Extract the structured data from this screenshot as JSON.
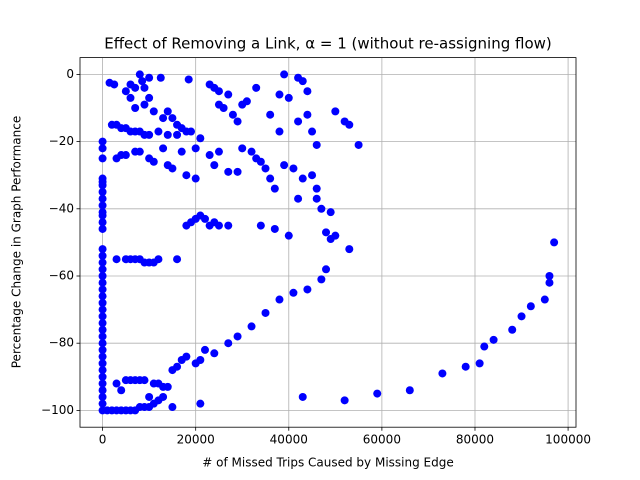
{
  "chart_data": {
    "type": "scatter",
    "title": "Effect of Removing a Link, α = 1 (without re-assigning flow)",
    "xlabel": "# of Missed Trips Caused by Missing Edge",
    "ylabel": "Percentage Change in Graph Performance",
    "color": "#0000ff",
    "grid": true,
    "xlim": [
      -4850,
      101700
    ],
    "ylim": [
      -105,
      5
    ],
    "xticks": [
      0,
      20000,
      40000,
      60000,
      80000,
      100000
    ],
    "yticks": [
      {
        "value": -100,
        "label": "−100"
      },
      {
        "value": -80,
        "label": "−80"
      },
      {
        "value": -60,
        "label": "−60"
      },
      {
        "value": -40,
        "label": "−40"
      },
      {
        "value": -20,
        "label": "−20"
      },
      0
    ],
    "x": [
      0,
      0,
      0,
      0,
      0,
      0,
      0,
      0,
      0,
      0,
      0,
      0,
      0,
      0,
      0,
      0,
      0,
      0,
      0,
      0,
      0,
      0,
      0,
      0,
      0,
      0,
      0,
      0,
      0,
      0,
      0,
      0,
      0,
      0,
      0,
      0,
      0,
      0,
      1500,
      2500,
      6000,
      7000,
      8000,
      8500,
      9000,
      10000,
      12500,
      18500,
      23000,
      24000,
      25000,
      27000,
      31000,
      33000,
      38000,
      39000,
      42000,
      43000,
      44000,
      40000,
      50000,
      52000,
      53000,
      5000,
      6000,
      7000,
      9000,
      10000,
      11000,
      13000,
      14000,
      15000,
      16000,
      17000,
      18000,
      19000,
      25000,
      26000,
      28000,
      29000,
      30000,
      36000,
      38000,
      42000,
      44000,
      46000,
      45000,
      55000,
      2000,
      3000,
      4000,
      5000,
      6000,
      7000,
      8000,
      9000,
      10000,
      12000,
      14000,
      16000,
      20000,
      21000,
      3000,
      4000,
      5000,
      7000,
      8000,
      10000,
      11000,
      13000,
      14000,
      15000,
      17000,
      18000,
      20000,
      23000,
      24000,
      25000,
      27000,
      29000,
      30000,
      32000,
      33000,
      34000,
      35000,
      36000,
      37000,
      39000,
      41000,
      42000,
      43000,
      45000,
      46000,
      46000,
      47000,
      49000,
      48000,
      49000,
      50000,
      53000,
      48000,
      47000,
      44000,
      41000,
      38000,
      35000,
      32000,
      29000,
      27000,
      24000,
      22000,
      21000,
      20000,
      18000,
      19000,
      20000,
      21000,
      22000,
      23000,
      24000,
      25000,
      27000,
      34000,
      37000,
      40000,
      3000,
      5000,
      6000,
      7000,
      8000,
      9000,
      10000,
      11000,
      12000,
      16000,
      66000,
      73000,
      78000,
      81000,
      82000,
      84000,
      88000,
      90000,
      92000,
      95000,
      96000,
      96000,
      97000,
      1000,
      2000,
      3000,
      4000,
      5000,
      6000,
      7000,
      8000,
      9000,
      10000,
      11000,
      12000,
      13000,
      14000,
      15000,
      16000,
      17000,
      18000,
      3000,
      4000,
      5000,
      6000,
      7000,
      8000,
      9000,
      10000,
      11000,
      12000,
      13000,
      15000,
      21000,
      43000,
      52000,
      59000
    ],
    "y": [
      -20,
      -22,
      -25,
      -31,
      -32,
      -33,
      -35,
      -37,
      -39,
      -41,
      -42,
      -44,
      -46,
      -52,
      -54,
      -56,
      -58,
      -60,
      -62,
      -64,
      -66,
      -68,
      -70,
      -72,
      -74,
      -76,
      -78,
      -80,
      -82,
      -84,
      -86,
      -88,
      -90,
      -92,
      -94,
      -96,
      -98,
      -100,
      -2.5,
      -3,
      -3,
      -4,
      0,
      -2,
      -4,
      -1,
      -1,
      -1.5,
      -3,
      -4,
      -5,
      -6,
      -8,
      -4,
      -6,
      0,
      -1,
      -2,
      -5,
      -7,
      -11,
      -14,
      -15,
      -5,
      -7,
      -10,
      -9,
      -7,
      -11,
      -13,
      -11,
      -13,
      -15,
      -16,
      -17,
      -17,
      -9,
      -10,
      -12,
      -14,
      -9,
      -12,
      -17,
      -14,
      -12,
      -21,
      -17,
      -21,
      -15,
      -15,
      -16,
      -16,
      -17,
      -17,
      -17,
      -18,
      -18,
      -17,
      -18,
      -18,
      -22,
      -19,
      -25,
      -24,
      -24,
      -23,
      -23,
      -25,
      -26,
      -22,
      -27,
      -28,
      -23,
      -30,
      -31,
      -24,
      -27,
      -23,
      -29,
      -29,
      -22,
      -23,
      -25,
      -26,
      -28,
      -31,
      -34,
      -27,
      -28,
      -37,
      -31,
      -30,
      -34,
      -37,
      -40,
      -41,
      -47,
      -49,
      -48,
      -52,
      -58,
      -61,
      -64,
      -65,
      -67,
      -71,
      -75,
      -78,
      -80,
      -83,
      -82,
      -85,
      -86,
      -45,
      -44,
      -43,
      -42,
      -43,
      -45,
      -44,
      -45,
      -45,
      -45,
      -46,
      -48,
      -55,
      -55,
      -55,
      -55,
      -55,
      -56,
      -56,
      -56,
      -55,
      -55,
      -94,
      -89,
      -87,
      -86,
      -81,
      -79,
      -76,
      -72,
      -69,
      -67,
      -62,
      -60,
      -50,
      -100,
      -100,
      -100,
      -100,
      -100,
      -100,
      -100,
      -99,
      -99,
      -99,
      -98,
      -97,
      -96,
      -93,
      -88,
      -87,
      -85,
      -84,
      -92,
      -94,
      -91,
      -91,
      -91,
      -91,
      -91,
      -96,
      -92,
      -92,
      -93,
      -99,
      -98,
      -96,
      -97,
      -95
    ]
  }
}
